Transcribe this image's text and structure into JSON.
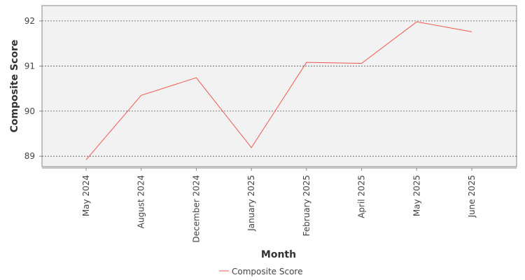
{
  "chart_data": {
    "type": "line",
    "x_label": "Month",
    "y_label": "Composite Score",
    "categories": [
      "May 2024",
      "August 2024",
      "December 2024",
      "January 2025",
      "February 2025",
      "April 2025",
      "May 2025",
      "June 2025"
    ],
    "series": [
      {
        "name": "Composite Score",
        "color": "#f0574d",
        "values": [
          88.92,
          90.35,
          90.74,
          89.19,
          91.08,
          91.06,
          91.98,
          91.76
        ]
      }
    ],
    "ylim": [
      88.77,
      92.34
    ],
    "yticks": [
      89,
      90,
      91,
      92
    ],
    "grid": true,
    "legend": "bottom"
  }
}
